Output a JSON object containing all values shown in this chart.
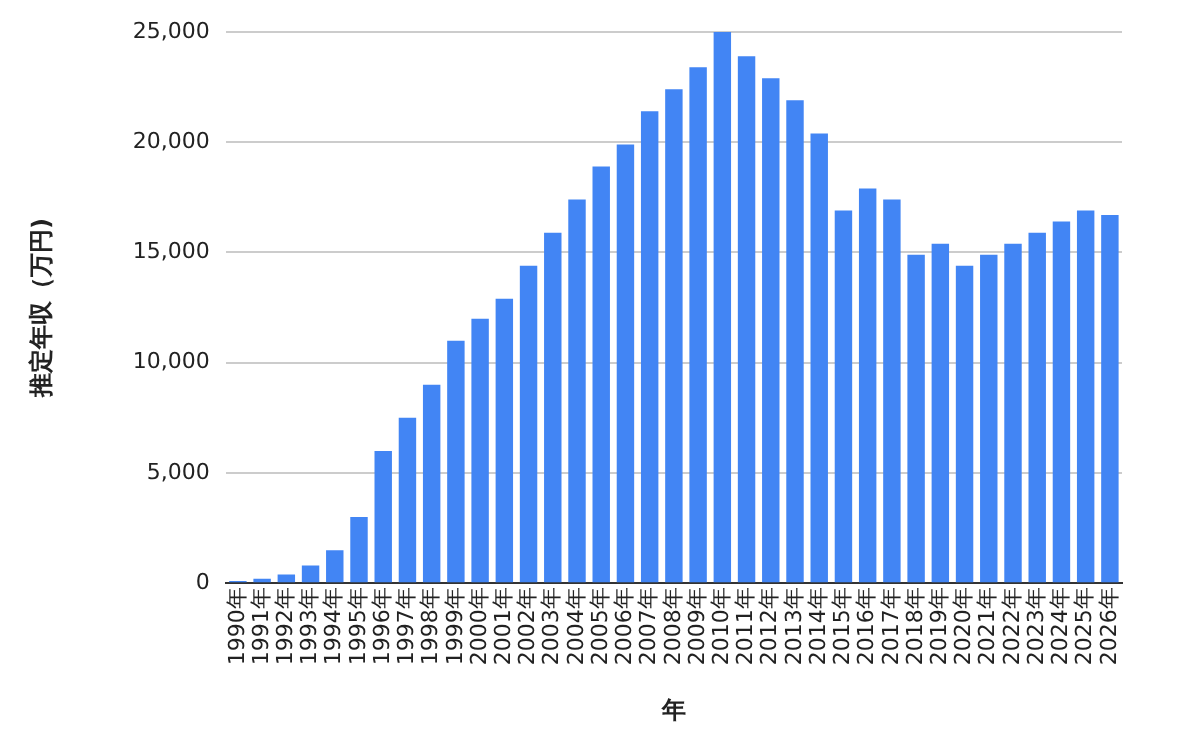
{
  "chart_data": {
    "type": "bar",
    "xlabel": "年",
    "ylabel": "推定年収（万円)",
    "categories": [
      "1990年",
      "1991年",
      "1992年",
      "1993年",
      "1994年",
      "1995年",
      "1996年",
      "1997年",
      "1998年",
      "1999年",
      "2000年",
      "2001年",
      "2002年",
      "2003年",
      "2004年",
      "2005年",
      "2006年",
      "2007年",
      "2008年",
      "2009年",
      "2010年",
      "2011年",
      "2012年",
      "2013年",
      "2014年",
      "2015年",
      "2016年",
      "2017年",
      "2018年",
      "2019年",
      "2020年",
      "2021年",
      "2022年",
      "2023年",
      "2024年",
      "2025年",
      "2026年"
    ],
    "values": [
      100,
      200,
      400,
      800,
      1500,
      3000,
      6000,
      7500,
      9000,
      11000,
      12000,
      12900,
      14400,
      15900,
      17400,
      18900,
      19900,
      21400,
      22400,
      23400,
      25000,
      23900,
      22900,
      21900,
      20400,
      16900,
      17900,
      17400,
      14900,
      15400,
      14400,
      14900,
      15400,
      15900,
      16400,
      16900,
      16700
    ],
    "color": "#4285f4",
    "ylim": [
      0,
      25000
    ],
    "yticks": [
      0,
      {
        "value": 5000,
        "label": "5,000"
      },
      {
        "value": 10000,
        "label": "10,000"
      },
      {
        "value": 15000,
        "label": "15,000"
      },
      {
        "value": 20000,
        "label": "20,000"
      },
      {
        "value": 25000,
        "label": "25,000"
      }
    ],
    "grid": "y"
  }
}
